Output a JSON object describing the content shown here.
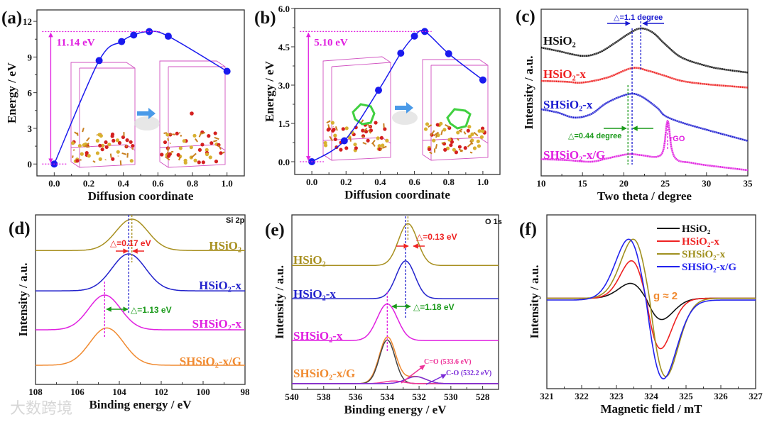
{
  "watermark": "大数跨境",
  "chart_data": [
    {
      "id": "a",
      "panel_label": "(a)",
      "type": "line",
      "xlabel": "Diffusion coordinate",
      "ylabel": "Energy / eV",
      "xlim": [
        -0.1,
        1.1
      ],
      "ylim": [
        -1.0,
        12.96
      ],
      "xticks": [
        0.0,
        0.2,
        0.4,
        0.6,
        0.8,
        1.0
      ],
      "xtick_labels": [
        "0.0",
        "0.2",
        "0.4",
        "0.6",
        "0.8",
        "1.0"
      ],
      "yticks": [
        0,
        3,
        6,
        9,
        12
      ],
      "ytick_labels": [
        "0",
        "3",
        "6",
        "9",
        "12"
      ],
      "series": [
        {
          "name": "energy",
          "color": "#1a1aee",
          "x": [
            0.0,
            0.26,
            0.39,
            0.46,
            0.55,
            0.66,
            1.0
          ],
          "y": [
            0.0,
            8.7,
            10.3,
            10.85,
            11.14,
            10.75,
            7.8
          ]
        }
      ],
      "annotation": {
        "text": "11.14 eV",
        "value": 11.14,
        "color": "#e020e0"
      }
    },
    {
      "id": "b",
      "panel_label": "(b)",
      "type": "line",
      "xlabel": "Diffusion coordinate",
      "ylabel": "Energy / eV",
      "xlim": [
        -0.1,
        1.1
      ],
      "ylim": [
        -0.5,
        6.0
      ],
      "xticks": [
        0.0,
        0.2,
        0.4,
        0.6,
        0.8,
        1.0
      ],
      "xtick_labels": [
        "0.0",
        "0.2",
        "0.4",
        "0.6",
        "0.8",
        "1.0"
      ],
      "yticks": [
        0,
        1.5,
        3.0,
        4.5,
        6.0
      ],
      "ytick_labels": [
        "0.0",
        "1.5",
        "3.0",
        "4.5",
        "6.0"
      ],
      "series": [
        {
          "name": "energy",
          "color": "#1a1aee",
          "x": [
            0.0,
            0.19,
            0.39,
            0.52,
            0.6,
            0.66,
            0.8,
            1.0
          ],
          "y": [
            0.0,
            0.82,
            2.8,
            4.25,
            4.92,
            5.1,
            4.23,
            3.2
          ]
        }
      ],
      "annotation": {
        "text": "5.10 eV",
        "value": 5.1,
        "color": "#e020e0"
      }
    },
    {
      "id": "c",
      "panel_label": "(c)",
      "type": "line",
      "xlabel": "Two theta / degree",
      "ylabel": "Intensity / a.u.",
      "xlim": [
        10,
        35
      ],
      "ylim": [
        0,
        100
      ],
      "xticks": [
        10,
        15,
        20,
        25,
        30,
        35
      ],
      "xtick_labels": [
        "10",
        "15",
        "20",
        "25",
        "30",
        "35"
      ],
      "series": [
        {
          "name": "HSiO₂",
          "color": "#111111",
          "x": [
            10,
            12,
            15,
            17,
            19,
            20.5,
            22,
            23.5,
            25,
            27,
            30,
            32,
            35
          ],
          "y": [
            77,
            75,
            72,
            74,
            80,
            85,
            88.5,
            86,
            79,
            71,
            66,
            64,
            62
          ]
        },
        {
          "name": "HSiO₂-x",
          "color": "#ee2222",
          "x": [
            10,
            13,
            15,
            18,
            21,
            23,
            25,
            27,
            30,
            35
          ],
          "y": [
            57,
            56.5,
            56,
            59,
            64.7,
            63,
            60,
            57,
            55,
            53
          ]
        },
        {
          "name": "SHSiO₂-x",
          "color": "#1a1ad0",
          "x": [
            10,
            12,
            14,
            16,
            18,
            20.5,
            22,
            24,
            25,
            27,
            30,
            32,
            35
          ],
          "y": [
            40,
            38,
            35,
            37,
            44,
            49,
            48,
            41,
            36,
            32,
            27.7,
            25,
            21
          ]
        },
        {
          "name": "SHSiO₂-x/G",
          "color": "#e020e0",
          "x": [
            10,
            13,
            16,
            18,
            20.5,
            22,
            24,
            24.8,
            25.3,
            25.8,
            26.5,
            28,
            30,
            35
          ],
          "y": [
            10,
            9.5,
            8.5,
            10.5,
            13,
            12.5,
            11.5,
            16,
            33,
            16,
            9.5,
            8,
            6.4,
            3.4
          ]
        }
      ],
      "annotations": {
        "delta1": "△=1.1 degree",
        "delta2": "△=0.44 degree",
        "rgo": "rGO"
      },
      "marker_lines": {
        "hsio2_peak": 22.05,
        "hsio2x_peak": 21.0,
        "shsio2xg_peak": 20.5,
        "rgo_peak": 25.3
      }
    },
    {
      "id": "d",
      "panel_label": "(d)",
      "type": "line",
      "xlabel": "Binding energy / eV",
      "ylabel": "Intensity / a.u.",
      "core_level": "Si 2p",
      "xlim": [
        108,
        98
      ],
      "ylim": [
        0,
        100
      ],
      "xticks": [
        108,
        106,
        104,
        102,
        100,
        98
      ],
      "xtick_labels": [
        "108",
        "106",
        "104",
        "102",
        "100",
        "98"
      ],
      "series": [
        {
          "name": "HSiO₂",
          "color": "#a89020",
          "baseline": 79,
          "peaks": [
            {
              "center": 103.4,
              "height": 18.5,
              "fwhm": 1.8
            }
          ]
        },
        {
          "name": "HSiO₂-x",
          "color": "#2222cc",
          "baseline": 55.2,
          "peaks": [
            {
              "center": 103.55,
              "height": 21.8,
              "fwhm": 1.9
            }
          ]
        },
        {
          "name": "SHSiO₂-x",
          "color": "#e020e0",
          "baseline": 32.2,
          "peaks": [
            {
              "center": 104.7,
              "height": 20.5,
              "fwhm": 1.8
            }
          ]
        },
        {
          "name": "SHSiO₂-x/G",
          "color": "#f08a30",
          "baseline": 11.3,
          "peaks": [
            {
              "center": 104.6,
              "height": 22,
              "fwhm": 1.9
            }
          ]
        }
      ],
      "annotations": {
        "delta1": "△=0.17 eV",
        "delta2": "△=1.13 eV"
      }
    },
    {
      "id": "e",
      "panel_label": "(e)",
      "type": "line",
      "xlabel": "Binding energy / eV",
      "ylabel": "Intensity / a.u.",
      "core_level": "O 1s",
      "xlim": [
        540,
        527
      ],
      "ylim": [
        0,
        100
      ],
      "xticks": [
        540,
        538,
        536,
        534,
        532,
        530,
        528
      ],
      "xtick_labels": [
        "540",
        "538",
        "536",
        "534",
        "532",
        "530",
        "528"
      ],
      "series": [
        {
          "name": "HSiO₂",
          "color": "#a89020",
          "baseline": 71,
          "peaks": [
            {
              "center": 532.7,
              "height": 24,
              "fwhm": 1.4
            }
          ]
        },
        {
          "name": "HSiO₂-x",
          "color": "#2222cc",
          "baseline": 52,
          "peaks": [
            {
              "center": 532.85,
              "height": 21.6,
              "fwhm": 1.4
            }
          ]
        },
        {
          "name": "SHSiO₂-x",
          "color": "#e020e0",
          "baseline": 28,
          "peaks": [
            {
              "center": 534.0,
              "height": 21,
              "fwhm": 1.5
            }
          ]
        },
        {
          "name": "SHSiO₂-x/G",
          "color": "#f08a30",
          "baseline": 3.3,
          "peaks": [
            {
              "center": 534.0,
              "height": 25.5,
              "fwhm": 1.2
            },
            {
              "center": 533.6,
              "height": 1.5,
              "fwhm": 1.4
            },
            {
              "center": 532.2,
              "height": 4,
              "fwhm": 1.5
            }
          ]
        },
        {
          "name": "fit main",
          "color": "#444444",
          "baseline": 3.3,
          "peaks": [
            {
              "center": 534.0,
              "height": 25,
              "fwhm": 1.15
            }
          ]
        },
        {
          "name": "C=O fit",
          "color": "#ee3399",
          "baseline": 3.3,
          "peaks": [
            {
              "center": 533.6,
              "height": 1.5,
              "fwhm": 1.4
            }
          ]
        },
        {
          "name": "C-O fit",
          "color": "#7a2ad8",
          "baseline": 3.3,
          "peaks": [
            {
              "center": 532.2,
              "height": 4,
              "fwhm": 1.5
            }
          ]
        }
      ],
      "annotations": {
        "delta1": "△=0.13 eV",
        "delta2": "△=1.18 eV",
        "co_double": "C=O (533.6 eV)",
        "co_single": "C-O (532.2 eV)"
      }
    },
    {
      "id": "f",
      "panel_label": "(f)",
      "type": "line",
      "xlabel": "Magnetic field / mT",
      "ylabel": "Intensity / a.u.",
      "xlim": [
        321,
        327
      ],
      "ylim": [
        0,
        100
      ],
      "xticks": [
        321,
        322,
        323,
        324,
        325,
        326,
        327
      ],
      "xtick_labels": [
        "321",
        "322",
        "323",
        "324",
        "325",
        "326",
        "327"
      ],
      "legend_position": "top-right",
      "series": [
        {
          "name": "HSiO₂",
          "color": "#111111",
          "baseline": 52,
          "center": 323.85,
          "width": 0.45,
          "up": 8.6,
          "down": 12.2
        },
        {
          "name": "HSiO₂-x",
          "color": "#ee2222",
          "baseline": 52,
          "center": 323.85,
          "width": 0.42,
          "up": 21.6,
          "down": 29
        },
        {
          "name": "SHSiO₂-x",
          "color": "#a09020",
          "baseline": 52,
          "center": 323.95,
          "width": 0.47,
          "up": 34,
          "down": 45
        },
        {
          "name": "SHSiO₂-x/G",
          "color": "#2222ee",
          "baseline": 51,
          "center": 323.85,
          "width": 0.5,
          "up": 35,
          "down": 45.3
        }
      ],
      "annotations": {
        "g_value": "g ≈ 2"
      }
    }
  ]
}
